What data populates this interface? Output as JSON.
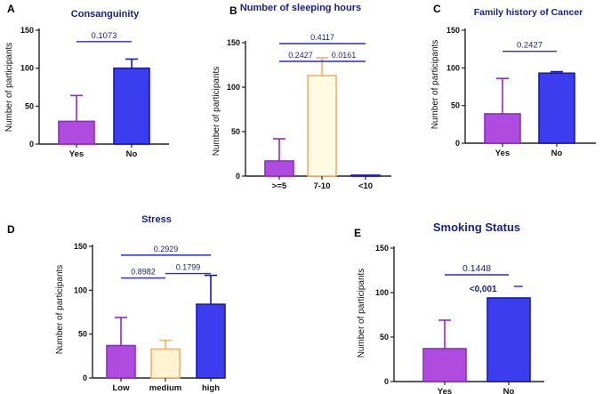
{
  "colors": {
    "purple_fill": "#b04be0",
    "purple_edge": "#8a2fc0",
    "blue_fill": "#3d3df0",
    "blue_edge": "#1a1aa8",
    "cream_fill": "#fffbe2",
    "cream_edge": "#f0b070",
    "axis": "#222222",
    "bracket": "#2a2ad0",
    "title": "#1a237e"
  },
  "chart_data": [
    {
      "id": "A",
      "letter": "A",
      "type": "bar",
      "title": "Consanguinity",
      "ylabel": "Number of participants",
      "ylim": [
        0,
        150
      ],
      "yticks": [
        0,
        50,
        100,
        150
      ],
      "categories": [
        "Yes",
        "No"
      ],
      "values": [
        30,
        100
      ],
      "errors": [
        34,
        12
      ],
      "bar_styles": [
        "purple",
        "blue"
      ],
      "brackets": [
        {
          "from": 0,
          "to": 1,
          "y": 135,
          "label": "0.1073"
        }
      ]
    },
    {
      "id": "B",
      "letter": "B",
      "type": "bar",
      "title": "Number of sleeping hours",
      "ylabel": "Number of participants",
      "ylim": [
        0,
        150
      ],
      "yticks": [
        0,
        50,
        100,
        150
      ],
      "categories": [
        ">=5",
        "7-10",
        "<10"
      ],
      "values": [
        17,
        113,
        1
      ],
      "errors": [
        25,
        20,
        0
      ],
      "bar_styles": [
        "purple",
        "cream",
        "blue"
      ],
      "brackets": [
        {
          "from": 0,
          "to": 2,
          "y": 149,
          "label": "0.4117"
        },
        {
          "from": 0,
          "to": 1,
          "y": 129,
          "label": "0.2427"
        },
        {
          "from": 1,
          "to": 2,
          "y": 129,
          "label": "0.0161"
        }
      ]
    },
    {
      "id": "C",
      "letter": "C",
      "type": "bar",
      "title": "Family history of Cancer",
      "ylabel": "Number of participants",
      "ylim": [
        0,
        150
      ],
      "yticks": [
        0,
        50,
        100,
        150
      ],
      "categories": [
        "Yes",
        "No"
      ],
      "values": [
        39,
        93
      ],
      "errors": [
        47,
        2
      ],
      "bar_styles": [
        "purple",
        "blue"
      ],
      "brackets": [
        {
          "from": 0,
          "to": 1,
          "y": 122,
          "label": "0.2427"
        }
      ]
    },
    {
      "id": "D",
      "letter": "D",
      "type": "bar",
      "title": "Stress",
      "ylabel": "Number of participants",
      "ylim": [
        0,
        150
      ],
      "yticks": [
        0,
        50,
        100,
        150
      ],
      "categories": [
        "Low",
        "medium",
        "high"
      ],
      "values": [
        37,
        33,
        84
      ],
      "errors": [
        32,
        10,
        33
      ],
      "bar_styles": [
        "purple",
        "cream_orange",
        "blue"
      ],
      "brackets": [
        {
          "from": 0,
          "to": 2,
          "y": 140,
          "label": "0.2929"
        },
        {
          "from": 0,
          "to": 1,
          "y": 114,
          "label": "0.8982"
        },
        {
          "from": 1,
          "to": 2,
          "y": 119,
          "label": "0.1799"
        }
      ]
    },
    {
      "id": "E",
      "letter": "E",
      "type": "bar",
      "title": "Smoking Status",
      "ylabel": "Number of participants",
      "ylim": [
        0,
        150
      ],
      "yticks": [
        0,
        50,
        100,
        150
      ],
      "categories": [
        "Yes",
        "No"
      ],
      "values": [
        37,
        94
      ],
      "errors": [
        32,
        0
      ],
      "bar_styles": [
        "purple",
        "blue"
      ],
      "brackets": [
        {
          "from": 0,
          "to": 1,
          "y": 120,
          "label": "0.1448"
        }
      ],
      "annotations": [
        {
          "text": "<0,001",
          "x_cat": 0.6,
          "y": 101
        }
      ],
      "extra_marks": [
        {
          "x_cat": 1.15,
          "y": 107
        }
      ]
    }
  ]
}
